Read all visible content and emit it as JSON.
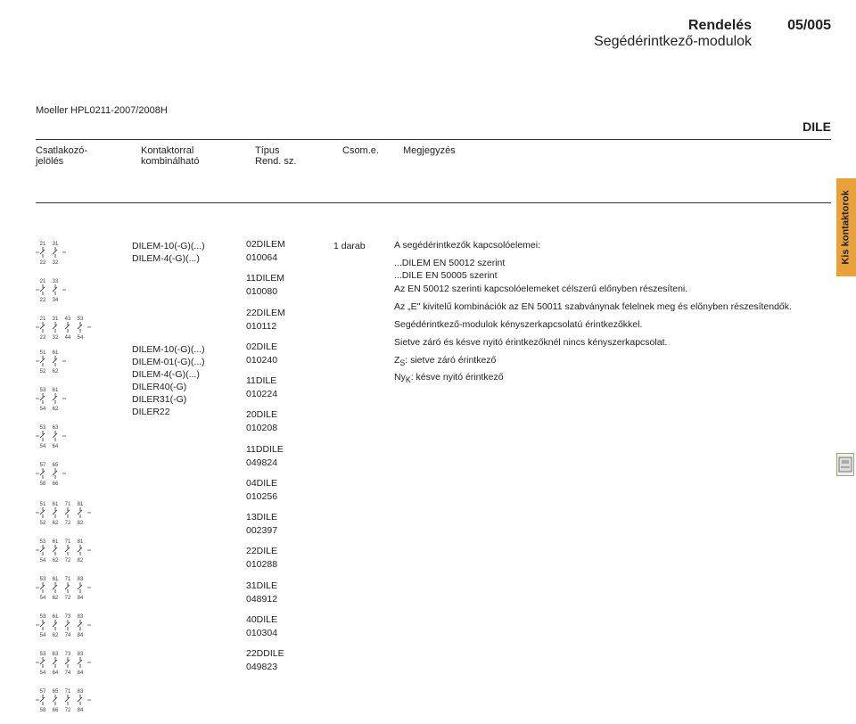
{
  "header": {
    "title1": "Rendelés",
    "title2": "Segédérintkező-modulok",
    "page_num": "05/005",
    "doc_ref": "Moeller HPL0211-2007/2008H",
    "dile": "DILE"
  },
  "side_tab": "Kis kontaktorok",
  "col_headers": {
    "a": "Csatlakozó-\njelölés",
    "b": "Kontaktorral\nkombinálható",
    "c": "Típus\nRend. sz.",
    "d": "Csom.e.",
    "e": "Megjegyzés"
  },
  "kombin1_lines": [
    "DILEM-10(-G)(...)",
    "DILEM-4(-G)(...)"
  ],
  "kombin2_lines": [
    "DILEM-10(-G)(...)",
    "DILEM-01(-G)(...)",
    "DILEM-4(-G)(...)",
    "DILER40(-G)",
    "DILER31(-G)",
    "DILER22"
  ],
  "types": [
    {
      "name": "02DILEM",
      "num": "010064"
    },
    {
      "name": "11DILEM",
      "num": "010080"
    },
    {
      "name": "22DILEM",
      "num": "010112"
    },
    {
      "name": "02DILE",
      "num": "010240"
    },
    {
      "name": "11DILE",
      "num": "010224"
    },
    {
      "name": "20DILE",
      "num": "010208"
    },
    {
      "name": "11DDILE",
      "num": "049824"
    },
    {
      "name": "04DILE",
      "num": "010256"
    },
    {
      "name": "13DILE",
      "num": "002397"
    },
    {
      "name": "22DILE",
      "num": "010288"
    },
    {
      "name": "31DILE",
      "num": "048912"
    },
    {
      "name": "40DILE",
      "num": "010304"
    },
    {
      "name": "22DDILE",
      "num": "049823"
    }
  ],
  "csom": "1 darab",
  "notes": {
    "p1": "A segédérintkezők kapcsolóelemei:",
    "p2": "...DILEM EN 50012 szerint",
    "p3": "...DILE EN 50005 szerint",
    "p4": "Az EN 50012 szerinti kapcsolóelemeket célszerű előnyben részesíteni.",
    "p5": "Az „E\" kivitelű kombinációk az EN 50011 szabványnak felelnek meg és előnyben részesítendők.",
    "p6": "Segédérintkező-modulok kényszerkapcsolatú érintkezőkkel.",
    "p7": "Sietve záró és késve nyitó érintkezőknél nincs kényszerkapcsolat.",
    "p8_pre": "Z",
    "p8_sub": "S",
    "p8_post": ": sietve záró érintkező",
    "p9_pre": "Ny",
    "p9_sub": "K",
    "p9_post": ": késve nyitó érintkező"
  },
  "diagrams": [
    {
      "top": [
        "21",
        "31"
      ],
      "bot": [
        "22",
        "32"
      ]
    },
    {
      "top": [
        "21",
        "33"
      ],
      "bot": [
        "22",
        "34"
      ]
    },
    {
      "top": [
        "21",
        "31",
        "43",
        "53"
      ],
      "bot": [
        "22",
        "32",
        "44",
        "54"
      ]
    },
    {
      "top": [
        "51",
        "61"
      ],
      "bot": [
        "52",
        "62"
      ]
    },
    {
      "top": [
        "53",
        "61"
      ],
      "bot": [
        "54",
        "62"
      ]
    },
    {
      "top": [
        "53",
        "63"
      ],
      "bot": [
        "54",
        "64"
      ]
    },
    {
      "top": [
        "57",
        "65"
      ],
      "bot": [
        "58",
        "66"
      ]
    },
    {
      "top": [
        "51",
        "61",
        "71",
        "81"
      ],
      "bot": [
        "52",
        "62",
        "72",
        "82"
      ]
    },
    {
      "top": [
        "53",
        "61",
        "71",
        "81"
      ],
      "bot": [
        "54",
        "62",
        "72",
        "82"
      ]
    },
    {
      "top": [
        "53",
        "61",
        "71",
        "83"
      ],
      "bot": [
        "54",
        "62",
        "72",
        "84"
      ]
    },
    {
      "top": [
        "53",
        "61",
        "73",
        "83"
      ],
      "bot": [
        "54",
        "62",
        "74",
        "84"
      ]
    },
    {
      "top": [
        "53",
        "63",
        "73",
        "83"
      ],
      "bot": [
        "54",
        "64",
        "74",
        "84"
      ]
    },
    {
      "top": [
        "57",
        "65",
        "71",
        "83"
      ],
      "bot": [
        "58",
        "66",
        "72",
        "84"
      ]
    }
  ],
  "colors": {
    "accent": "#e9a13b",
    "rule": "#333333",
    "text": "#222222"
  }
}
